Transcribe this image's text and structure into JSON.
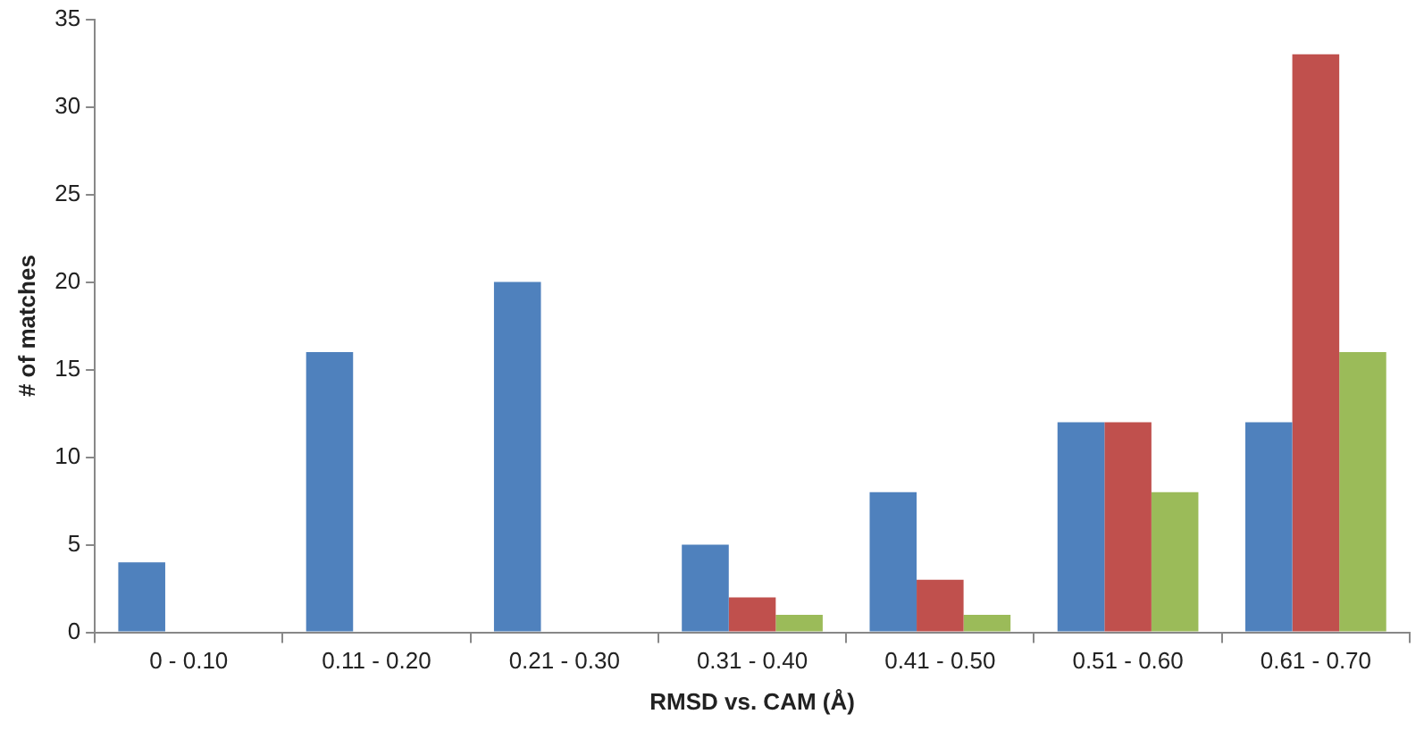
{
  "chart_data": {
    "type": "bar",
    "xlabel": "RMSD vs. CAM (Å)",
    "ylabel": "# of matches",
    "categories": [
      "0 - 0.10",
      "0.11 - 0.20",
      "0.21 - 0.30",
      "0.31 - 0.40",
      "0.41 - 0.50",
      "0.51 - 0.60",
      "0.61 - 0.70"
    ],
    "series": [
      {
        "color": "#4f81bd",
        "values": [
          4,
          16,
          20,
          5,
          8,
          12,
          12
        ]
      },
      {
        "color": "#c0504d",
        "values": [
          null,
          null,
          null,
          2,
          3,
          12,
          33
        ]
      },
      {
        "color": "#9bbb59",
        "values": [
          null,
          null,
          null,
          1,
          1,
          8,
          16
        ]
      }
    ],
    "ylim": [
      0,
      35
    ],
    "yticks": [
      0,
      5,
      10,
      15,
      20,
      25,
      30,
      35
    ],
    "grid": false,
    "legend": false
  }
}
